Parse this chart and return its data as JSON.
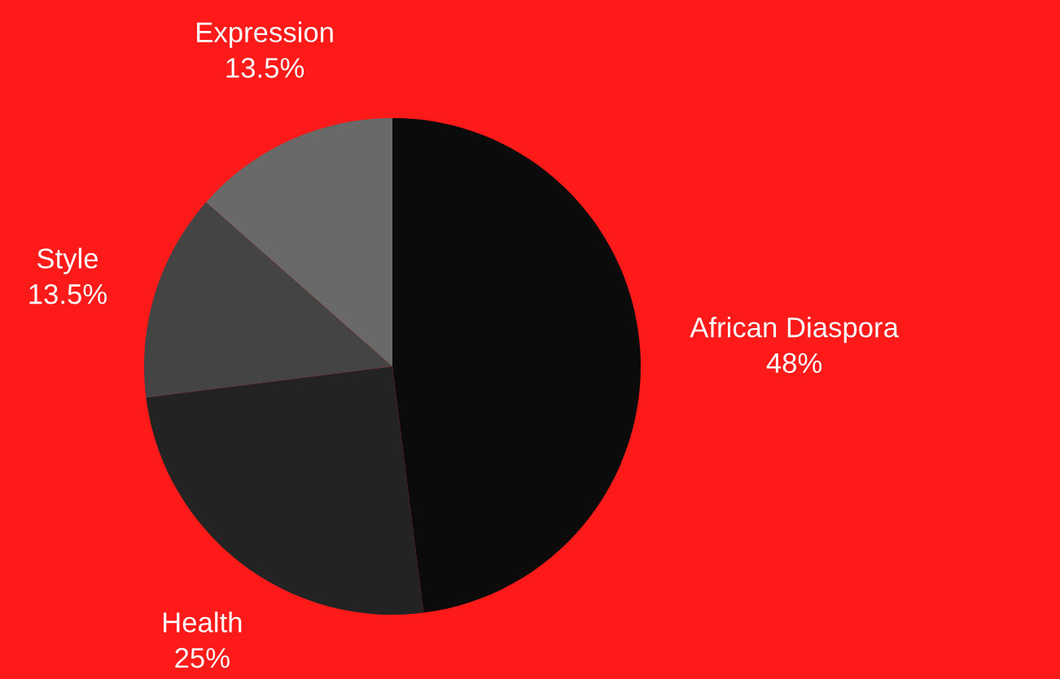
{
  "chart_data": {
    "type": "pie",
    "categories": [
      "African Diaspora",
      "Health",
      "Style",
      "Expression"
    ],
    "values": [
      48,
      25,
      13.5,
      13.5
    ],
    "value_labels": [
      "48%",
      "25%",
      "13.5%",
      "13.5%"
    ],
    "colors": [
      "#0b0b0b",
      "#232323",
      "#444444",
      "#696969"
    ]
  }
}
